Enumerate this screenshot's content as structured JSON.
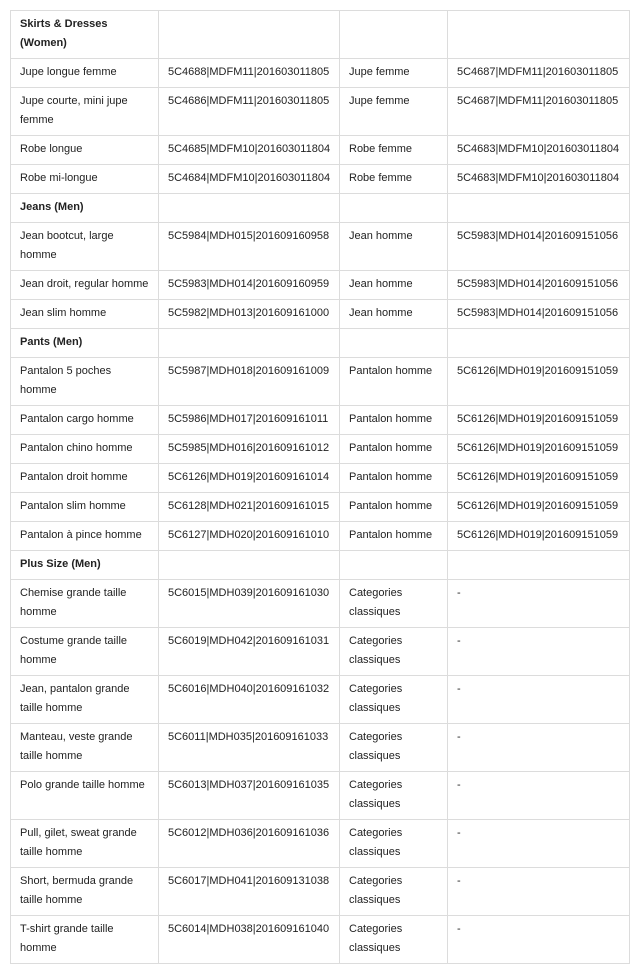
{
  "sections": [
    {
      "title": "Skirts & Dresses (Women)",
      "rows": [
        [
          "Jupe longue femme",
          "5C4688|MDFM11|201603011805",
          "Jupe femme",
          "5C4687|MDFM11|201603011805"
        ],
        [
          "Jupe courte, mini jupe femme",
          "5C4686|MDFM11|201603011805",
          "Jupe femme",
          "5C4687|MDFM11|201603011805"
        ],
        [
          "Robe longue",
          "5C4685|MDFM10|201603011804",
          "Robe femme",
          "5C4683|MDFM10|201603011804"
        ],
        [
          "Robe mi-longue",
          "5C4684|MDFM10|201603011804",
          "Robe femme",
          "5C4683|MDFM10|201603011804"
        ]
      ]
    },
    {
      "title": "Jeans (Men)",
      "rows": [
        [
          "Jean bootcut, large homme",
          "5C5984|MDH015|201609160958",
          "Jean homme",
          "5C5983|MDH014|201609151056"
        ],
        [
          "Jean droit, regular homme",
          "5C5983|MDH014|201609160959",
          "Jean homme",
          "5C5983|MDH014|201609151056"
        ],
        [
          "Jean slim homme",
          "5C5982|MDH013|201609161000",
          "Jean homme",
          "5C5983|MDH014|201609151056"
        ]
      ]
    },
    {
      "title": "Pants (Men)",
      "rows": [
        [
          "Pantalon 5 poches homme",
          "5C5987|MDH018|201609161009",
          "Pantalon homme",
          "5C6126|MDH019|201609151059"
        ],
        [
          "Pantalon cargo homme",
          "5C5986|MDH017|201609161011",
          "Pantalon homme",
          "5C6126|MDH019|201609151059"
        ],
        [
          "Pantalon chino homme",
          "5C5985|MDH016|201609161012",
          "Pantalon homme",
          "5C6126|MDH019|201609151059"
        ],
        [
          "Pantalon droit homme",
          "5C6126|MDH019|201609161014",
          "Pantalon homme",
          "5C6126|MDH019|201609151059"
        ],
        [
          "Pantalon slim homme",
          "5C6128|MDH021|201609161015",
          "Pantalon homme",
          "5C6126|MDH019|201609151059"
        ],
        [
          "Pantalon à pince homme",
          "5C6127|MDH020|201609161010",
          "Pantalon homme",
          "5C6126|MDH019|201609151059"
        ]
      ]
    },
    {
      "title": "Plus Size (Men)",
      "rows": [
        [
          "Chemise grande taille homme",
          "5C6015|MDH039|201609161030",
          "Categories classiques",
          "-"
        ],
        [
          "Costume grande taille homme",
          "5C6019|MDH042|201609161031",
          "Categories classiques",
          "-"
        ],
        [
          "Jean, pantalon grande taille homme",
          "5C6016|MDH040|201609161032",
          "Categories classiques",
          "-"
        ],
        [
          "Manteau, veste grande taille homme",
          "5C6011|MDH035|201609161033",
          "Categories classiques",
          "-"
        ],
        [
          "Polo grande taille homme",
          "5C6013|MDH037|201609161035",
          "Categories classiques",
          "-"
        ],
        [
          "Pull, gilet, sweat grande taille homme",
          "5C6012|MDH036|201609161036",
          "Categories classiques",
          "-"
        ],
        [
          "Short, bermuda grande taille homme",
          "5C6017|MDH041|201609131038",
          "Categories classiques",
          "-"
        ],
        [
          "T-shirt grande taille homme",
          "5C6014|MDH038|201609161040",
          "Categories classiques",
          "-"
        ]
      ]
    }
  ]
}
